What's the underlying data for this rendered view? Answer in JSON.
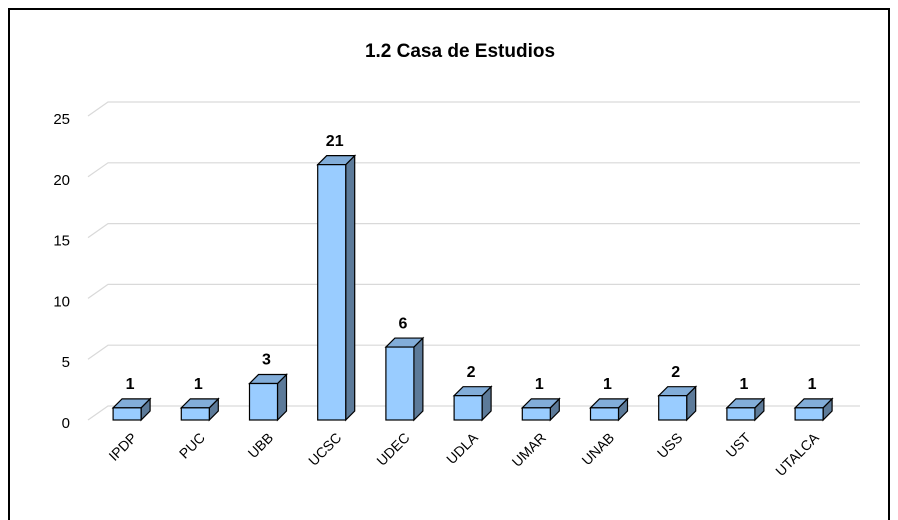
{
  "chart_data": {
    "type": "bar3d",
    "title": "1.2 Casa de Estudios",
    "categories": [
      "IPDP",
      "PUC",
      "UBB",
      "UCSC",
      "UDEC",
      "UDLA",
      "UMAR",
      "UNAB",
      "USS",
      "UST",
      "UTALCA"
    ],
    "values": [
      1,
      1,
      3,
      21,
      6,
      2,
      1,
      1,
      2,
      1,
      1
    ],
    "color": "#99ccff",
    "ylim": [
      0,
      25
    ],
    "yticks": [
      0,
      5,
      10,
      15,
      20,
      25
    ],
    "grid": true
  }
}
